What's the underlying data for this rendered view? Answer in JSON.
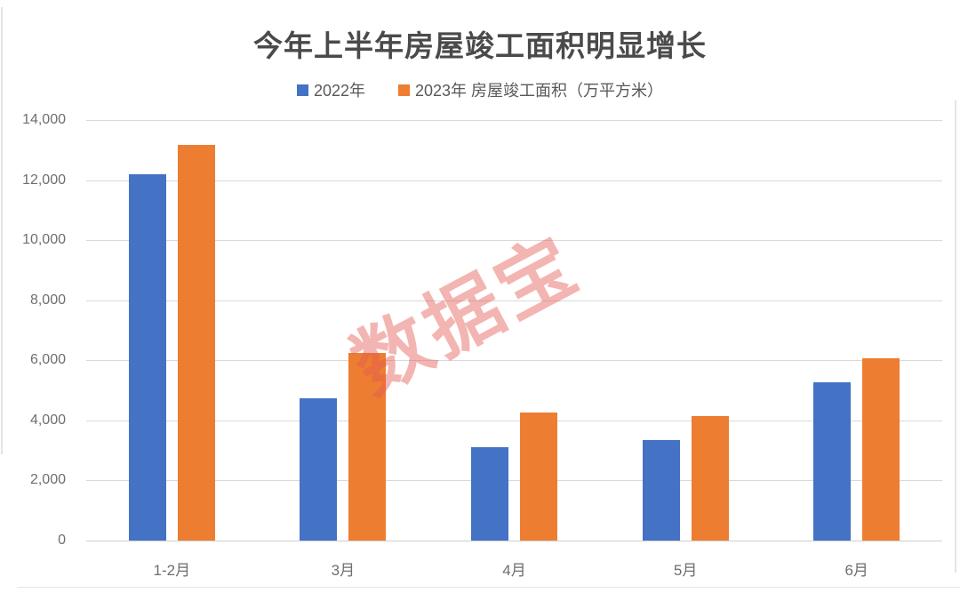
{
  "watermark": {
    "text": "数据宝",
    "color": "rgba(228, 90, 84, 0.45)"
  },
  "edge_line_color": "#e4e4e4",
  "chart_data": {
    "type": "bar",
    "title": "今年上半年房屋竣工面积明显增长",
    "categories": [
      "1-2月",
      "3月",
      "4月",
      "5月",
      "6月"
    ],
    "series": [
      {
        "name": "2022年",
        "color": "#4472C4",
        "values": [
          12200,
          4729,
          3101,
          3332,
          5274
        ]
      },
      {
        "name": "2023年 房屋竣工面积（万平方米）",
        "color": "#ED7D31",
        "values": [
          13178,
          6244,
          4256,
          4148,
          6078
        ]
      }
    ],
    "xlabel": "",
    "ylabel": "",
    "ylim": [
      0,
      14000
    ],
    "ytick_step": 2000,
    "ytick_labels": [
      "14,000",
      "12,000",
      "10,000",
      "8,000",
      "6,000",
      "4,000",
      "2,000",
      "0"
    ],
    "grid": true,
    "gridline_color": "#d9d9d9",
    "legend_position": "top",
    "tick_label_color": "#6e6e6e",
    "title_color": "#4a4a4a",
    "legend_text_color": "#595959"
  }
}
